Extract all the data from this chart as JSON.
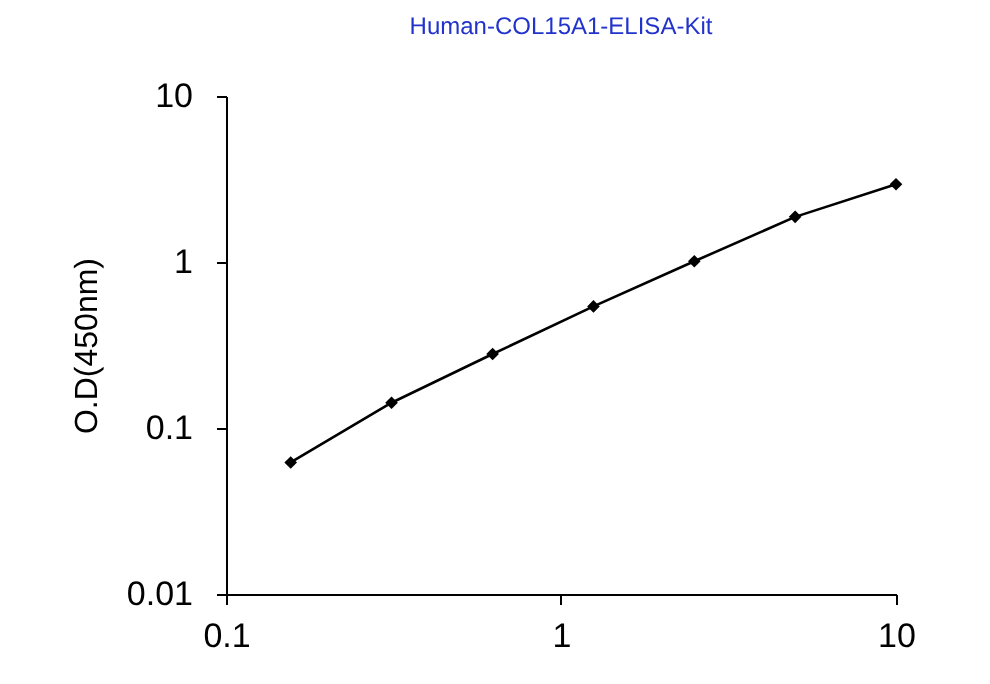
{
  "chart_data": {
    "type": "line",
    "title": "Human-COL15A1-ELISA-Kit",
    "ylabel": "O.D(450nm)",
    "x": [
      0.156,
      0.312,
      0.625,
      1.25,
      2.5,
      5,
      10
    ],
    "series": [
      {
        "color": "#000000",
        "values": [
          0.062,
          0.142,
          0.279,
          0.54,
          1.01,
          1.87,
          2.94
        ]
      }
    ],
    "log": "xy",
    "xlim": [
      0.1,
      10
    ],
    "xticks": [
      0.1,
      1,
      10
    ],
    "ylim": [
      0.01,
      10
    ],
    "yticks": [
      0.01,
      0.1,
      1,
      10
    ],
    "marker": "diamond",
    "line_style": "solid",
    "grid": false
  }
}
